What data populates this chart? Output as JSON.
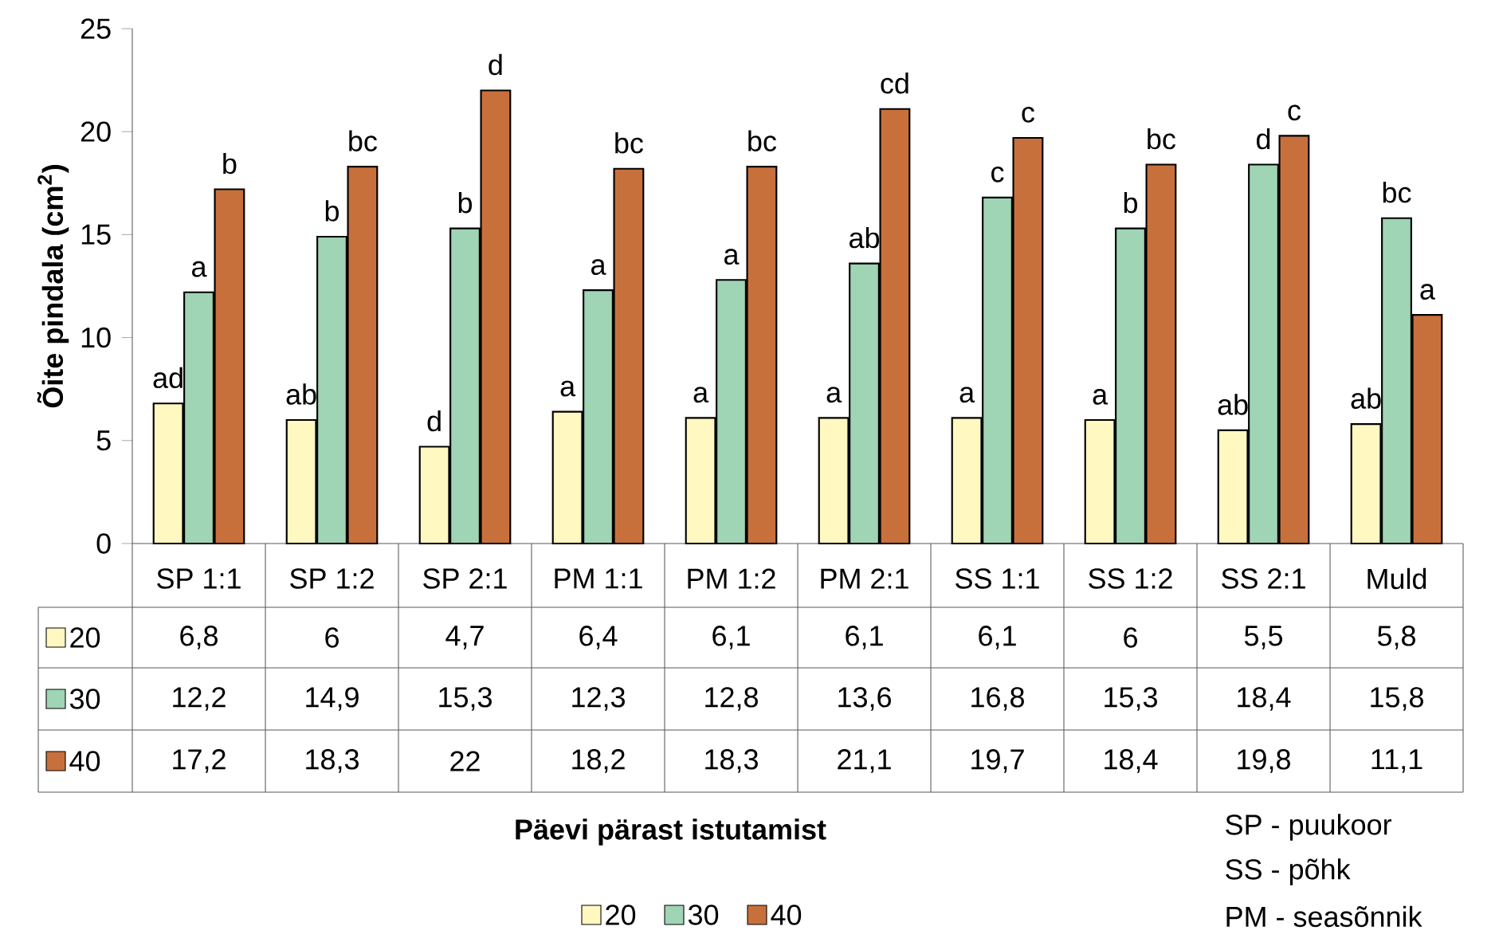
{
  "chart_data": {
    "type": "bar",
    "ylabel": "Õite pindala (cm$^{2}$)",
    "legend_title": "Päevi pärast istutamist",
    "categories": [
      "SP 1:1",
      "SP 1:2",
      "SP 2:1",
      "PM 1:1",
      "PM 1:2",
      "PM 2:1",
      "SS 1:1",
      "SS 1:2",
      "SS 2:1",
      "Muld"
    ],
    "series": [
      {
        "name": "20",
        "color": "#fff8c0",
        "values": [
          6.8,
          6,
          4.7,
          6.4,
          6.1,
          6.1,
          6.1,
          6,
          5.5,
          5.8
        ],
        "value_labels": [
          "6,8",
          "6",
          "4,7",
          "6,4",
          "6,1",
          "6,1",
          "6,1",
          "6",
          "5,5",
          "5,8"
        ]
      },
      {
        "name": "30",
        "color": "#9fd4b4",
        "values": [
          12.2,
          14.9,
          15.3,
          12.3,
          12.8,
          13.6,
          16.8,
          15.3,
          18.4,
          15.8
        ],
        "value_labels": [
          "12,2",
          "14,9",
          "15,3",
          "12,3",
          "12,8",
          "13,6",
          "16,8",
          "15,3",
          "18,4",
          "15,8"
        ]
      },
      {
        "name": "40",
        "color": "#c8703c",
        "values": [
          17.2,
          18.3,
          22,
          18.2,
          18.3,
          21.1,
          19.7,
          18.4,
          19.8,
          11.1
        ],
        "value_labels": [
          "17,2",
          "18,3",
          "22",
          "18,2",
          "18,3",
          "21,1",
          "19,7",
          "18,4",
          "19,8",
          "11,1"
        ]
      }
    ],
    "ylim": [
      0,
      25
    ],
    "yticks": [
      0,
      5,
      10,
      15,
      20,
      25
    ],
    "legend": "bottom",
    "annotations": [
      "ad",
      "a",
      "b",
      "ab",
      "b",
      "bc",
      "d",
      "b",
      "d",
      "a",
      "a",
      "bc",
      "a",
      "a",
      "bc",
      "a",
      "ab",
      "cd",
      "a",
      "c",
      "c",
      "a",
      "b",
      "bc",
      "ab",
      "d",
      "c",
      "ab",
      "bc",
      "a",
      "SP - puukoor",
      "SS - põhk",
      "PM - seasõnnik"
    ]
  }
}
